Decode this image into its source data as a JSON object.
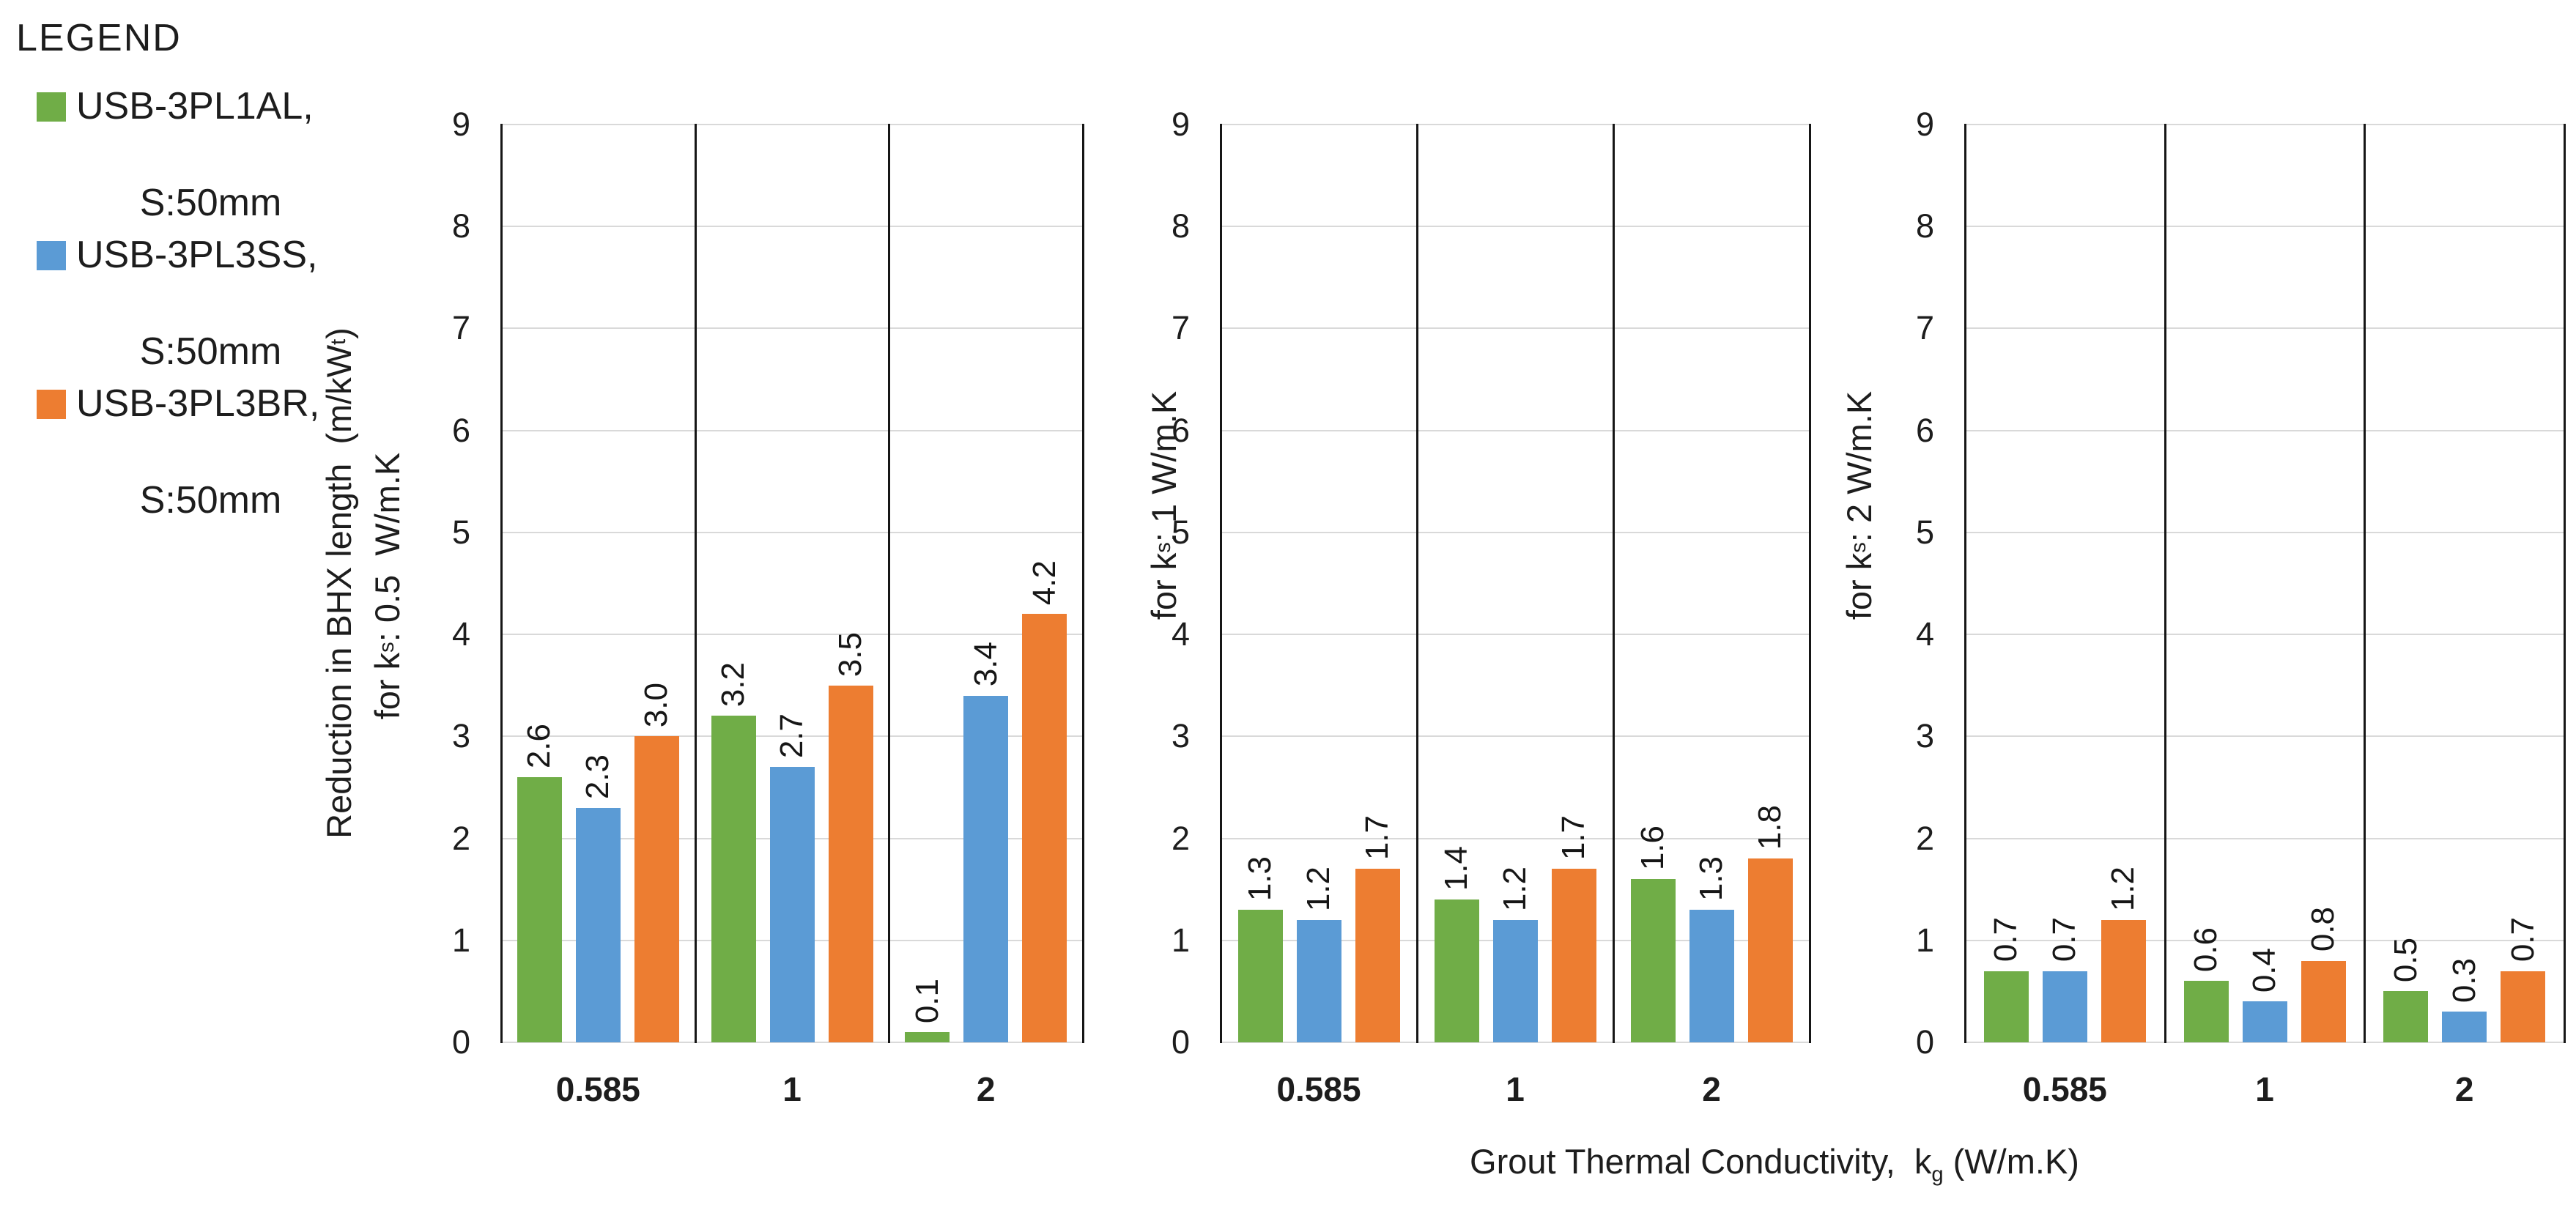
{
  "legend": {
    "title": "LEGEND",
    "items": [
      {
        "line1": "USB-3PL1AL,",
        "line2": "S:50mm",
        "color": "#70AD47"
      },
      {
        "line1": "USB-3PL3SS,",
        "line2": "S:50mm",
        "color": "#5B9BD5"
      },
      {
        "line1": "USB-3PL3BR,",
        "line2": "S:50mm",
        "color": "#ED7D31"
      }
    ]
  },
  "chart_data": {
    "type": "bar",
    "categories": [
      "0.585",
      "1",
      "2"
    ],
    "series": [
      {
        "name": "USB-3PL1AL, S:50mm",
        "color": "#70AD47"
      },
      {
        "name": "USB-3PL3SS, S:50mm",
        "color": "#5B9BD5"
      },
      {
        "name": "USB-3PL3BR, S:50mm",
        "color": "#ED7D31"
      }
    ],
    "ylim": [
      0,
      9
    ],
    "yticks": [
      "0",
      "1",
      "2",
      "3",
      "4",
      "5",
      "6",
      "7",
      "8",
      "9"
    ],
    "grid": "horizontal",
    "legend_position": "left",
    "xlabel": {
      "pre": "Grout Thermal Conductivity,  k",
      "sub": "g",
      "post": " (W/m.K)"
    },
    "panels": [
      {
        "ylabel_lines": [
          {
            "pre": "Reduction in BHX length  (m/kW",
            "sub": "t",
            "post": ")"
          },
          {
            "pre": "for k",
            "sub": "s",
            "post": ": 0.5  W/m.K"
          }
        ],
        "values": [
          [
            2.6,
            2.3,
            3.0
          ],
          [
            3.2,
            2.7,
            3.5
          ],
          [
            0.1,
            3.4,
            4.2
          ]
        ],
        "labels": [
          [
            "2.6",
            "2.3",
            "3.0"
          ],
          [
            "3.2",
            "2.7",
            "3.5"
          ],
          [
            "0.1",
            "3.4",
            "4.2"
          ]
        ]
      },
      {
        "ylabel_lines": [
          {
            "pre": "for k",
            "sub": "s",
            "post": ": 1 W/m.K"
          }
        ],
        "values": [
          [
            1.3,
            1.2,
            1.7
          ],
          [
            1.4,
            1.2,
            1.7
          ],
          [
            1.6,
            1.3,
            1.8
          ]
        ],
        "labels": [
          [
            "1.3",
            "1.2",
            "1.7"
          ],
          [
            "1.4",
            "1.2",
            "1.7"
          ],
          [
            "1.6",
            "1.3",
            "1.8"
          ]
        ]
      },
      {
        "ylabel_lines": [
          {
            "pre": "for k",
            "sub": "s",
            "post": ": 2 W/m.K"
          }
        ],
        "values": [
          [
            0.7,
            0.7,
            1.2
          ],
          [
            0.6,
            0.4,
            0.8
          ],
          [
            0.5,
            0.3,
            0.7
          ]
        ],
        "labels": [
          [
            "0.7",
            "0.7",
            "1.2"
          ],
          [
            "0.6",
            "0.4",
            "0.8"
          ],
          [
            "0.5",
            "0.3",
            "0.7"
          ]
        ]
      }
    ]
  }
}
